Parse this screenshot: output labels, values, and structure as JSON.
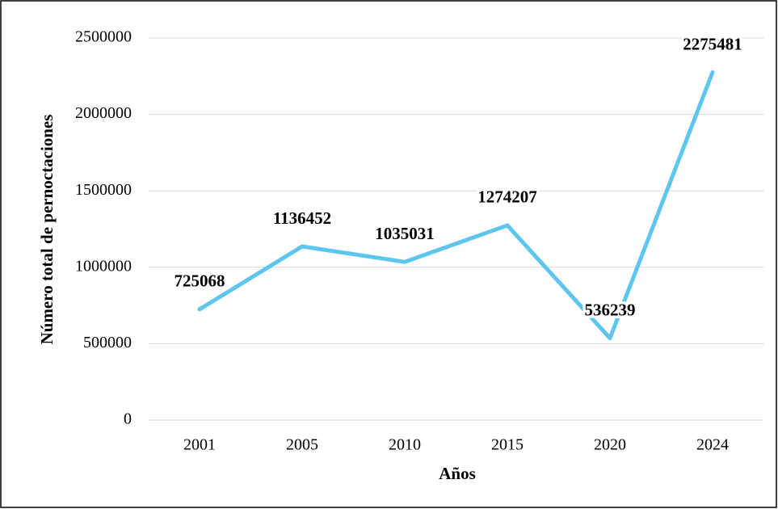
{
  "chart_data": {
    "type": "line",
    "categories": [
      "2001",
      "2005",
      "2010",
      "2015",
      "2020",
      "2024"
    ],
    "series": [
      {
        "name": "Número total de pernoctaciones",
        "color": "#5ec6ee",
        "values": [
          725068,
          1136452,
          1035031,
          1274207,
          536239,
          2275481
        ]
      }
    ],
    "x_label": "Años",
    "y_label": "Número total de pernoctaciones",
    "ylim": [
      0,
      2500000
    ],
    "yticks": [
      0,
      500000,
      1000000,
      1500000,
      2000000,
      2500000
    ],
    "grid": true
  }
}
